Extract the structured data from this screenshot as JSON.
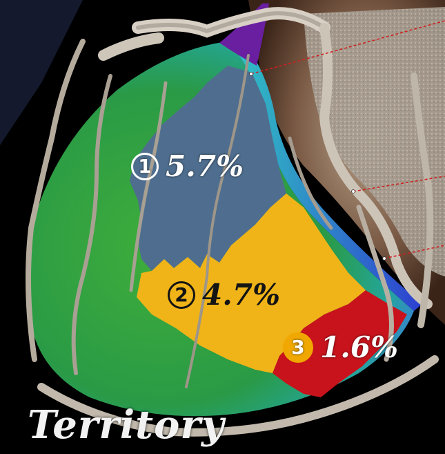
{
  "title": "Territory",
  "regions": [
    {
      "number": "①",
      "percent": "5.7%",
      "color": "#4f6e8f"
    },
    {
      "number": "②",
      "percent": "4.7%",
      "color": "#f0b419"
    },
    {
      "number": "③",
      "percent": "1.6%",
      "color": "#c8131c"
    }
  ],
  "colors": {
    "myocardium_green": "#2f9a3a",
    "myocardium_cyan": "#38c8c0",
    "myocardium_purple": "#6a1fa0",
    "vessel": "#c9c0b4",
    "background": "#000000"
  }
}
